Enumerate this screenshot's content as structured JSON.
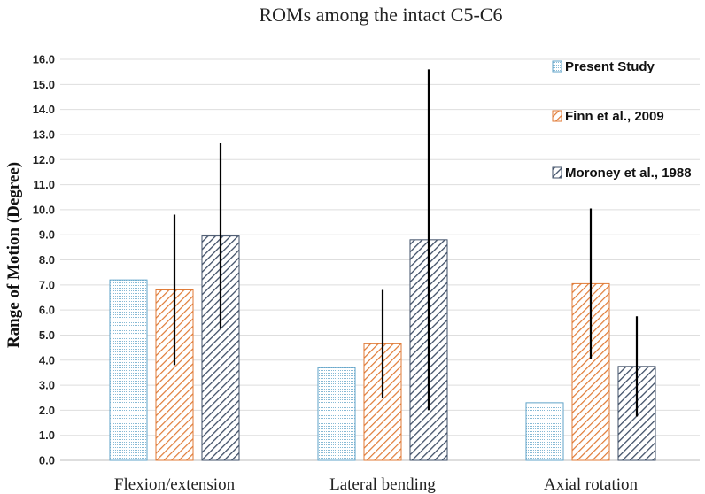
{
  "chart_data": {
    "type": "bar",
    "title": "ROMs among the intact C5-C6",
    "xlabel": "",
    "ylabel": "Range of Motion  (Degree)",
    "ylim": [
      0,
      16
    ],
    "ytick_step": 1,
    "ytick_labels": [
      "0.0",
      "1.0",
      "2.0",
      "3.0",
      "4.0",
      "5.0",
      "6.0",
      "7.0",
      "8.0",
      "9.0",
      "10.0",
      "11.0",
      "12.0",
      "13.0",
      "14.0",
      "15.0",
      "16.0"
    ],
    "categories": [
      "Flexion/extension",
      "Lateral bending",
      "Axial rotation"
    ],
    "grid": true,
    "legend_position": "right",
    "series": [
      {
        "name": "Present Study",
        "values": [
          7.2,
          3.7,
          2.3
        ],
        "errors": [
          null,
          null,
          null
        ],
        "color": "#5fa3c8",
        "pattern": "dots"
      },
      {
        "name": "Finn et al., 2009",
        "values": [
          6.8,
          4.65,
          7.05
        ],
        "errors": [
          3.0,
          2.15,
          3.0
        ],
        "color": "#e07a35",
        "pattern": "diag"
      },
      {
        "name": "Moroney et al., 1988",
        "values": [
          8.95,
          8.8,
          3.75
        ],
        "errors": [
          3.7,
          6.8,
          2.0
        ],
        "color": "#3f4f67",
        "pattern": "diag"
      }
    ]
  }
}
